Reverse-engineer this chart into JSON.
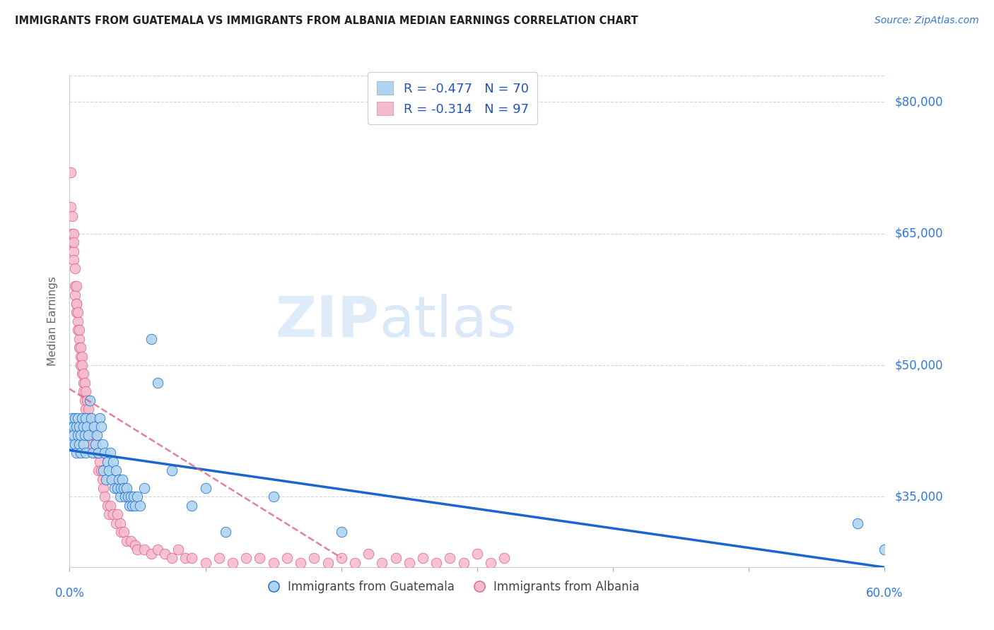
{
  "title": "IMMIGRANTS FROM GUATEMALA VS IMMIGRANTS FROM ALBANIA MEDIAN EARNINGS CORRELATION CHART",
  "source": "Source: ZipAtlas.com",
  "ylabel": "Median Earnings",
  "ytick_labels": [
    "$35,000",
    "$50,000",
    "$65,000",
    "$80,000"
  ],
  "ytick_values": [
    35000,
    50000,
    65000,
    80000
  ],
  "watermark_zip": "ZIP",
  "watermark_atlas": "atlas",
  "guatemala_color": "#aed4f0",
  "albania_color": "#f5bcd0",
  "guatemala_line_color": "#1a66cc",
  "albania_line_color": "#e06080",
  "grid_color": "#c8d8e8",
  "xlim": [
    0.0,
    0.6
  ],
  "ylim": [
    27000,
    83000
  ],
  "guatemala_x": [
    0.001,
    0.002,
    0.002,
    0.003,
    0.003,
    0.004,
    0.004,
    0.005,
    0.005,
    0.006,
    0.006,
    0.007,
    0.007,
    0.008,
    0.008,
    0.009,
    0.01,
    0.01,
    0.011,
    0.012,
    0.012,
    0.013,
    0.014,
    0.015,
    0.016,
    0.017,
    0.018,
    0.019,
    0.02,
    0.021,
    0.022,
    0.023,
    0.024,
    0.025,
    0.026,
    0.027,
    0.028,
    0.029,
    0.03,
    0.031,
    0.032,
    0.033,
    0.034,
    0.035,
    0.036,
    0.037,
    0.038,
    0.039,
    0.04,
    0.041,
    0.042,
    0.043,
    0.044,
    0.045,
    0.046,
    0.047,
    0.048,
    0.05,
    0.052,
    0.055,
    0.06,
    0.065,
    0.075,
    0.09,
    0.1,
    0.115,
    0.15,
    0.2,
    0.58,
    0.6
  ],
  "guatemala_y": [
    43000,
    44000,
    41000,
    43000,
    42000,
    44000,
    41000,
    43000,
    40000,
    42000,
    44000,
    41000,
    43000,
    40000,
    42000,
    44000,
    41000,
    43000,
    42000,
    40000,
    44000,
    43000,
    42000,
    46000,
    44000,
    40000,
    43000,
    41000,
    42000,
    40000,
    44000,
    43000,
    41000,
    38000,
    40000,
    37000,
    39000,
    38000,
    40000,
    37000,
    39000,
    36000,
    38000,
    36000,
    37000,
    35000,
    36000,
    37000,
    36000,
    35000,
    36000,
    35000,
    34000,
    35000,
    34000,
    35000,
    34000,
    35000,
    34000,
    36000,
    53000,
    48000,
    38000,
    34000,
    36000,
    31000,
    35000,
    31000,
    32000,
    29000
  ],
  "albania_x": [
    0.001,
    0.001,
    0.002,
    0.002,
    0.002,
    0.003,
    0.003,
    0.003,
    0.003,
    0.004,
    0.004,
    0.004,
    0.005,
    0.005,
    0.005,
    0.005,
    0.006,
    0.006,
    0.006,
    0.007,
    0.007,
    0.007,
    0.008,
    0.008,
    0.008,
    0.009,
    0.009,
    0.009,
    0.01,
    0.01,
    0.01,
    0.011,
    0.011,
    0.012,
    0.012,
    0.013,
    0.013,
    0.014,
    0.014,
    0.015,
    0.015,
    0.016,
    0.017,
    0.018,
    0.018,
    0.019,
    0.02,
    0.021,
    0.022,
    0.023,
    0.024,
    0.025,
    0.026,
    0.028,
    0.029,
    0.03,
    0.032,
    0.034,
    0.035,
    0.037,
    0.038,
    0.04,
    0.042,
    0.045,
    0.048,
    0.05,
    0.055,
    0.06,
    0.065,
    0.07,
    0.075,
    0.08,
    0.085,
    0.09,
    0.1,
    0.11,
    0.12,
    0.13,
    0.14,
    0.15,
    0.16,
    0.17,
    0.18,
    0.19,
    0.2,
    0.21,
    0.22,
    0.23,
    0.24,
    0.25,
    0.26,
    0.27,
    0.28,
    0.29,
    0.3,
    0.31,
    0.32
  ],
  "albania_y": [
    72000,
    68000,
    67000,
    65000,
    64000,
    65000,
    63000,
    64000,
    62000,
    61000,
    59000,
    58000,
    57000,
    59000,
    56000,
    57000,
    55000,
    54000,
    56000,
    53000,
    52000,
    54000,
    51000,
    52000,
    50000,
    49000,
    51000,
    50000,
    48000,
    49000,
    47000,
    48000,
    46000,
    47000,
    45000,
    46000,
    44000,
    45000,
    43000,
    44000,
    42000,
    43000,
    41000,
    42000,
    40000,
    41000,
    40000,
    38000,
    39000,
    38000,
    37000,
    36000,
    35000,
    34000,
    33000,
    34000,
    33000,
    32000,
    33000,
    32000,
    31000,
    31000,
    30000,
    30000,
    29500,
    29000,
    29000,
    28500,
    29000,
    28500,
    28000,
    29000,
    28000,
    28000,
    27500,
    28000,
    27500,
    28000,
    28000,
    27500,
    28000,
    27500,
    28000,
    27500,
    28000,
    27500,
    28500,
    27500,
    28000,
    27500,
    28000,
    27500,
    28000,
    27500,
    28500,
    27500,
    28000
  ]
}
